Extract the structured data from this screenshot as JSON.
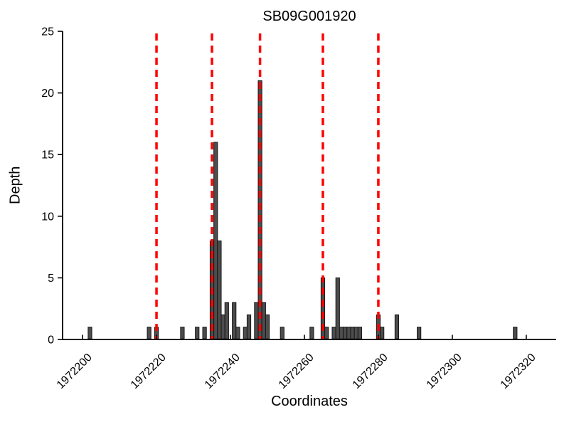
{
  "chart_data": {
    "type": "bar",
    "title": "SB09G001920",
    "xlabel": "Coordinates",
    "ylabel": "Depth",
    "xlim": [
      1972194.6,
      1972328.1
    ],
    "ylim": [
      0,
      25
    ],
    "xticks": [
      1972200,
      1972220,
      1972240,
      1972260,
      1972280,
      1972300,
      1972320
    ],
    "yticks": [
      0,
      5,
      10,
      15,
      20,
      25
    ],
    "grid": false,
    "legend": null,
    "bar_width": 1,
    "x": [
      1972202,
      1972218,
      1972220,
      1972227,
      1972231,
      1972233,
      1972235,
      1972236,
      1972237,
      1972238,
      1972239,
      1972241,
      1972242,
      1972244,
      1972245,
      1972247,
      1972248,
      1972249,
      1972250,
      1972254,
      1972262,
      1972265,
      1972266,
      1972268,
      1972269,
      1972270,
      1972271,
      1972272,
      1972273,
      1972274,
      1972275,
      1972280,
      1972281,
      1972285,
      1972291,
      1972317
    ],
    "values": [
      1,
      1,
      1,
      1,
      1,
      1,
      8,
      16,
      8,
      2,
      3,
      3,
      1,
      1,
      2,
      3,
      21,
      3,
      2,
      1,
      1,
      5,
      1,
      1,
      5,
      1,
      1,
      1,
      1,
      1,
      1,
      2,
      1,
      2,
      1,
      1
    ],
    "vlines": {
      "x": [
        1972220,
        1972235,
        1972248,
        1972265,
        1972280
      ],
      "style": "dashed",
      "color": "#fe0000"
    },
    "colors": {
      "bar_fill": "#4d4d4d",
      "bar_edge": "#161616",
      "vline": "#fe0000",
      "axis": "#000000",
      "background": "#ffffff"
    }
  }
}
